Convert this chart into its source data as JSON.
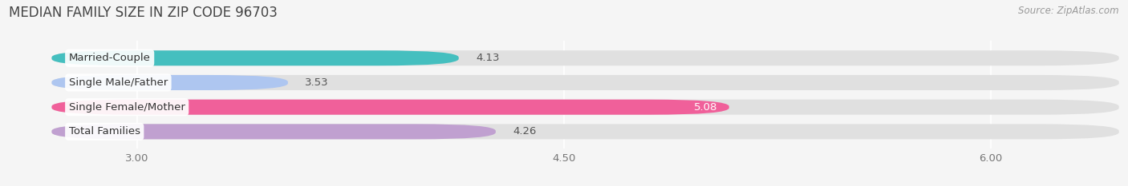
{
  "title": "MEDIAN FAMILY SIZE IN ZIP CODE 96703",
  "source": "Source: ZipAtlas.com",
  "categories": [
    "Married-Couple",
    "Single Male/Father",
    "Single Female/Mother",
    "Total Families"
  ],
  "values": [
    4.13,
    3.53,
    5.08,
    4.26
  ],
  "bar_colors": [
    "#45bfbf",
    "#aec6f0",
    "#f0609a",
    "#c0a0d0"
  ],
  "bar_bg_color": "#e8e8e8",
  "xlim_min": 2.55,
  "xlim_max": 6.45,
  "xmin": 2.7,
  "xticks": [
    3.0,
    4.5,
    6.0
  ],
  "xtick_labels": [
    "3.00",
    "4.50",
    "6.00"
  ],
  "label_fontsize": 9.5,
  "value_fontsize": 9.5,
  "title_fontsize": 12,
  "source_fontsize": 8.5,
  "bar_height": 0.62,
  "background_color": "#f5f5f5",
  "value_inside_threshold": 4.85
}
